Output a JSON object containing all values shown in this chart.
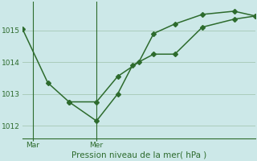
{
  "title": "Pression niveau de la mer( hPa )",
  "background_color": "#cce8e8",
  "line_color": "#2d6b2d",
  "grid_color": "#aaccbb",
  "ylim": [
    1011.6,
    1015.9
  ],
  "yticks": [
    1012,
    1013,
    1014,
    1015
  ],
  "xlim": [
    0,
    11
  ],
  "vline_x": [
    0.5,
    3.5
  ],
  "xtick_labels": [
    "Mar",
    "Mer"
  ],
  "xtick_positions": [
    0.5,
    3.5
  ],
  "line1_x": [
    0.0,
    1.2,
    2.2,
    3.5,
    4.5,
    5.2,
    6.2,
    7.2,
    8.5,
    10.0,
    11.0
  ],
  "line1_y": [
    1015.05,
    1013.35,
    1012.75,
    1012.15,
    1013.0,
    1013.9,
    1014.25,
    1014.25,
    1015.1,
    1015.35,
    1015.45
  ],
  "line2_x": [
    2.2,
    3.5,
    4.5,
    5.5,
    6.2,
    7.2,
    8.5,
    10.0,
    11.0
  ],
  "line2_y": [
    1012.75,
    1012.75,
    1013.55,
    1014.0,
    1014.9,
    1015.2,
    1015.5,
    1015.6,
    1015.45
  ]
}
